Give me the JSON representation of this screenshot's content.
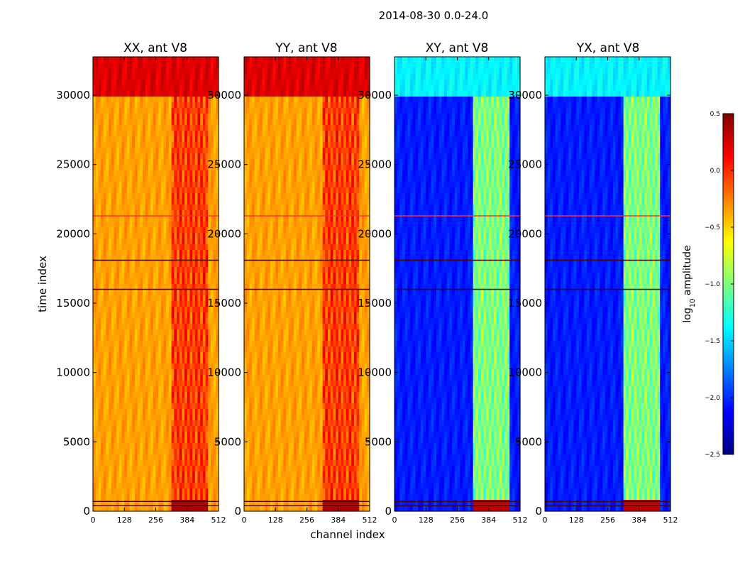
{
  "chart_data": {
    "type": "heatmap",
    "suptitle": "2014-08-30 0.0-24.0",
    "xlabel": "channel index",
    "ylabel": "time index",
    "xlim": [
      0,
      512
    ],
    "ylim": [
      0,
      32768
    ],
    "x_ticks": [
      0,
      128,
      256,
      384,
      512
    ],
    "y_ticks": [
      0,
      5000,
      10000,
      15000,
      20000,
      25000,
      30000
    ],
    "colorbar": {
      "label": "log10 amplitude",
      "label_main": "log",
      "label_sub": "10",
      "label_rest": " amplitude",
      "range": [
        -2.5,
        0.5
      ],
      "ticks": [
        0.5,
        0.0,
        -0.5,
        -1.0,
        -1.5,
        -2.0,
        -2.5
      ],
      "tick_labels": [
        "0.5",
        "0.0",
        "−0.5",
        "−1.0",
        "−1.5",
        "−2.0",
        "−2.5"
      ],
      "colormap": "jet",
      "colors": [
        "#00007f",
        "#0000ff",
        "#007fff",
        "#00ffff",
        "#7fff7f",
        "#ffff00",
        "#ff7f00",
        "#ff0000",
        "#7f0000"
      ]
    },
    "features": {
      "upper_block_start": 29700,
      "rfi_channel_start": 320,
      "rfi_channel_end": 470,
      "event_rows": [
        21300,
        18100,
        16000,
        700,
        400
      ]
    },
    "panels": [
      {
        "title": "XX, ant V8",
        "levels": {
          "low_band": -0.35,
          "rfi_band": -0.05,
          "upper_block": 0.22,
          "lower_rfi_burst": 0.35
        }
      },
      {
        "title": "YY, ant V8",
        "levels": {
          "low_band": -0.35,
          "rfi_band": -0.05,
          "upper_block": 0.22,
          "lower_rfi_burst": 0.35
        }
      },
      {
        "title": "XY, ant V8",
        "levels": {
          "low_band": -2.05,
          "rfi_band": -1.0,
          "upper_block": -1.4,
          "lower_rfi_burst": 0.3
        }
      },
      {
        "title": "YX, ant V8",
        "levels": {
          "low_band": -2.05,
          "rfi_band": -1.0,
          "upper_block": -1.4,
          "lower_rfi_burst": 0.3
        }
      }
    ]
  }
}
